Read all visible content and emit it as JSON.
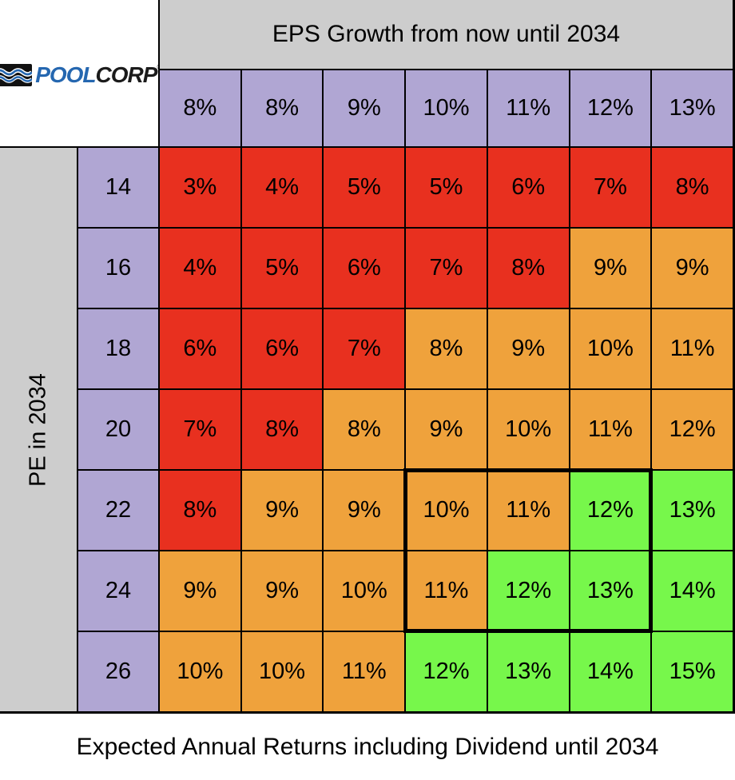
{
  "logo": {
    "pool": "POOL",
    "corp": "CORP",
    "registered": "®",
    "icon": "poolcorp-waves-icon"
  },
  "chart_data": {
    "type": "heatmap",
    "title": "EPS Growth from now until 2034",
    "row_axis_label": "PE in 2034",
    "caption": "Expected Annual Returns including Dividend until 2034",
    "col_headers": [
      "8%",
      "8%",
      "9%",
      "10%",
      "11%",
      "12%",
      "13%"
    ],
    "row_headers": [
      "14",
      "16",
      "18",
      "20",
      "22",
      "24",
      "26"
    ],
    "values": [
      [
        "3%",
        "4%",
        "5%",
        "5%",
        "6%",
        "7%",
        "8%"
      ],
      [
        "4%",
        "5%",
        "6%",
        "7%",
        "8%",
        "9%",
        "9%"
      ],
      [
        "6%",
        "6%",
        "7%",
        "8%",
        "9%",
        "10%",
        "11%"
      ],
      [
        "7%",
        "8%",
        "8%",
        "9%",
        "10%",
        "11%",
        "12%"
      ],
      [
        "8%",
        "9%",
        "9%",
        "10%",
        "11%",
        "12%",
        "13%"
      ],
      [
        "9%",
        "9%",
        "10%",
        "11%",
        "12%",
        "13%",
        "14%"
      ],
      [
        "10%",
        "10%",
        "11%",
        "12%",
        "13%",
        "14%",
        "15%"
      ]
    ],
    "cell_colors": [
      [
        "red",
        "red",
        "red",
        "red",
        "red",
        "red",
        "red"
      ],
      [
        "red",
        "red",
        "red",
        "red",
        "red",
        "orange",
        "orange"
      ],
      [
        "red",
        "red",
        "red",
        "orange",
        "orange",
        "orange",
        "orange"
      ],
      [
        "red",
        "red",
        "orange",
        "orange",
        "orange",
        "orange",
        "orange"
      ],
      [
        "red",
        "orange",
        "orange",
        "orange",
        "orange",
        "green",
        "green"
      ],
      [
        "orange",
        "orange",
        "orange",
        "orange",
        "green",
        "green",
        "green"
      ],
      [
        "orange",
        "orange",
        "orange",
        "green",
        "green",
        "green",
        "green"
      ]
    ],
    "highlight_region": {
      "description": "thick black border around PE rows 22-24 and EPS columns 10%-12%",
      "row_start": 4,
      "row_end": 5,
      "col_start": 3,
      "col_end": 5
    },
    "palette": {
      "red": "#E8301F",
      "orange": "#EFA23C",
      "green": "#77F74B",
      "header_purple": "#B0A6D3",
      "band_gray": "#CDCDCD",
      "grid_line": "#000000",
      "logo_blue": "#2567B0"
    },
    "legend_position": "none",
    "grid": true
  }
}
